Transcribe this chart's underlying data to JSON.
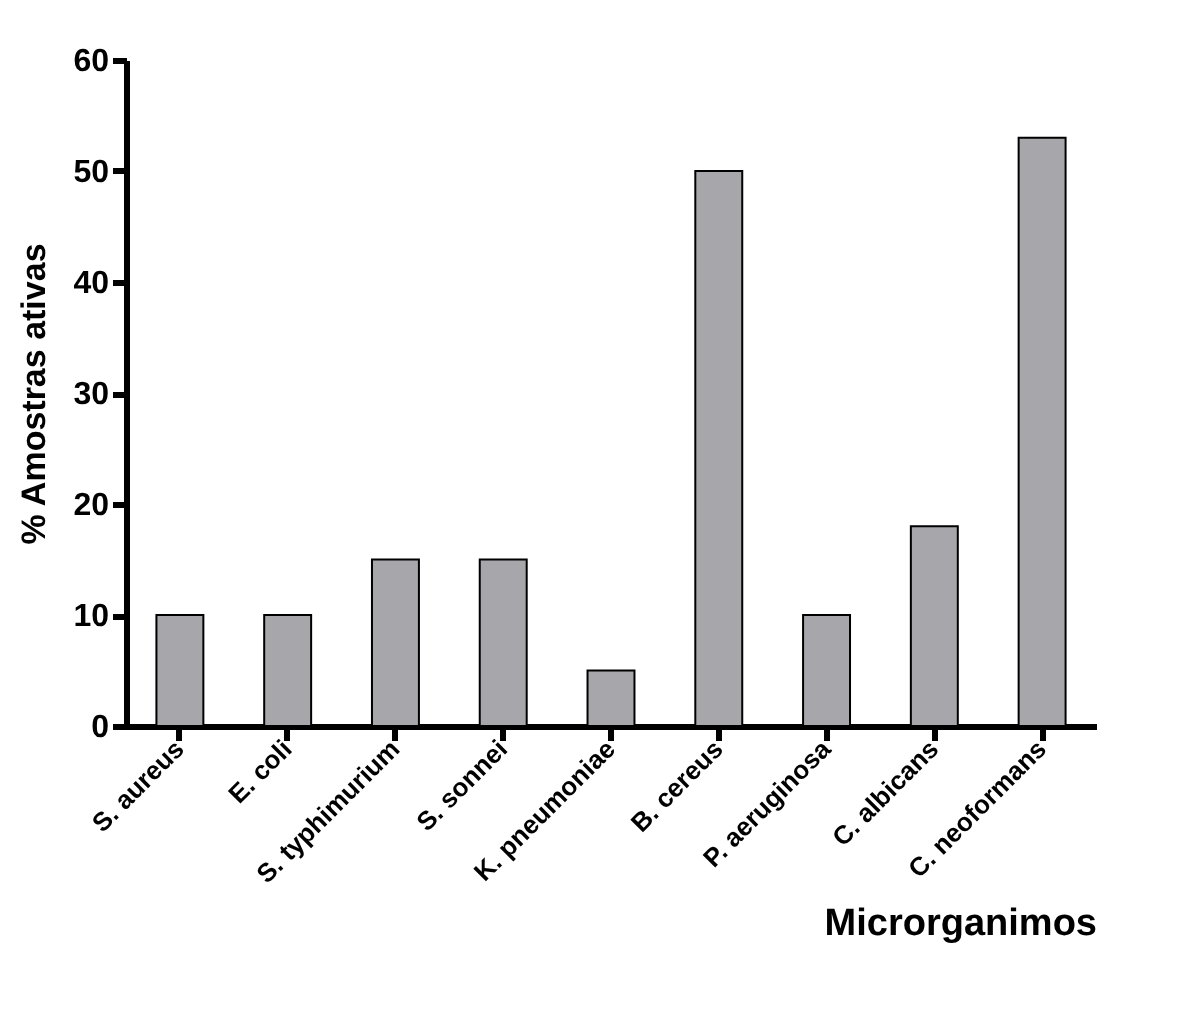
{
  "chart_data": {
    "type": "bar",
    "xlabel": "Microrganimos",
    "ylabel": "% Amostras ativas",
    "categories": [
      "S. aureus",
      "E. coli",
      "S. typhimurium",
      "S. sonnei",
      "K. pneumoniae",
      "B. cereus",
      "P. aeruginosa",
      "C. albicans",
      "C. neoformans"
    ],
    "values": [
      10,
      10,
      15,
      15,
      5,
      50,
      10,
      18,
      53
    ],
    "color": "#a7a6ab",
    "ylim": [
      0,
      60
    ],
    "yticks": [
      0,
      10,
      20,
      30,
      40,
      50,
      60
    ],
    "grid": false
  }
}
